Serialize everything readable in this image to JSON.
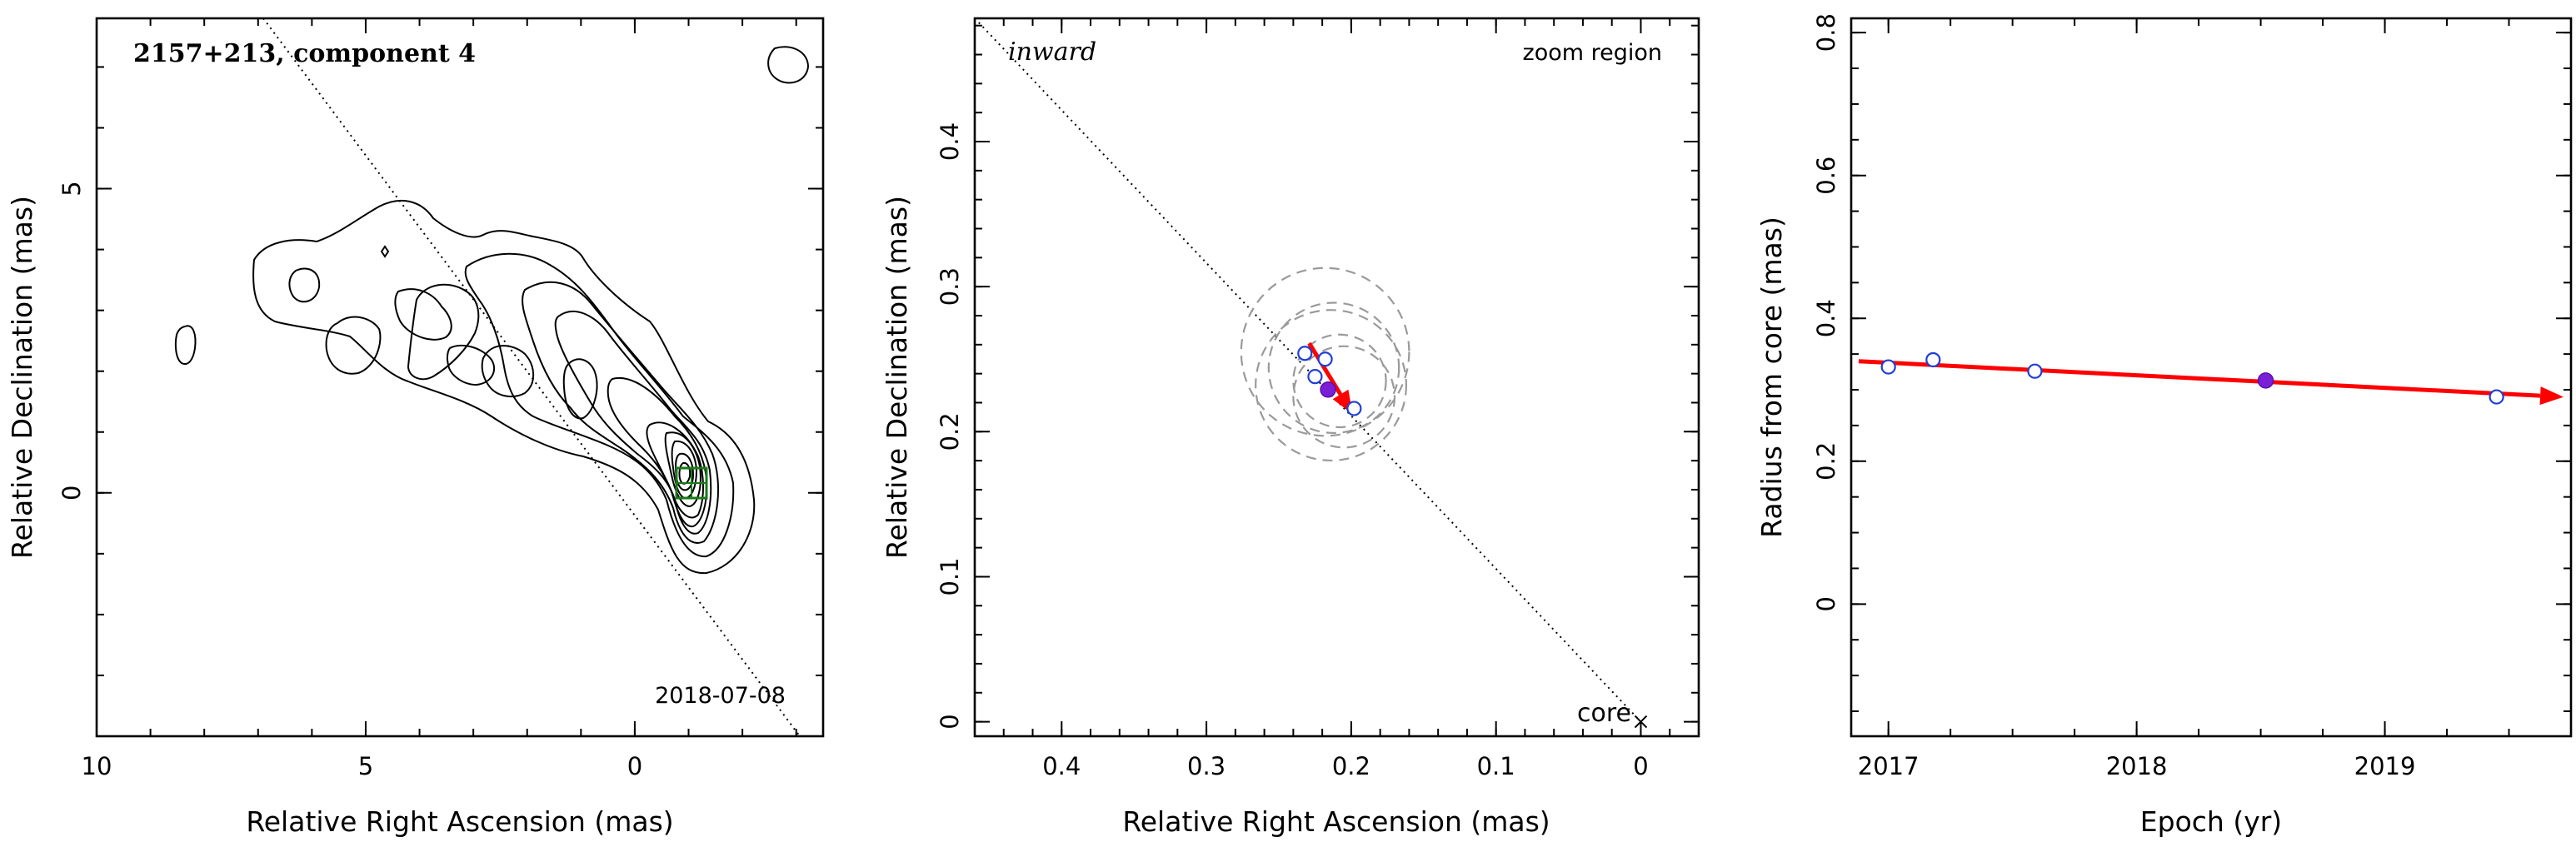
{
  "colors": {
    "open_marker": "#1f3fd6",
    "filled_marker": "#7a1fd6",
    "arrow": "#ff0000",
    "box": "#1a7a1a",
    "beam_circles": "#9a9a9a"
  },
  "chart_data": [
    {
      "type": "contour",
      "title": "2157+213, component 4",
      "date": "2018-07-08",
      "xlabel": "Relative Right Ascension (mas)",
      "ylabel": "Relative Declination (mas)",
      "xlim": [
        10,
        -3.5
      ],
      "ylim": [
        -4,
        7.8
      ],
      "xticks": [
        10,
        5,
        0
      ],
      "yticks": [
        0,
        5
      ],
      "jet_axis_line": [
        [
          7.3,
          7.8
        ],
        [
          -0.5,
          -0.6
        ]
      ],
      "zoom_box": {
        "x": [
          0.5,
          -0.1
        ],
        "y": [
          0.5,
          -0.05
        ]
      },
      "component_marker": {
        "x": 0.22,
        "y": 0.22
      },
      "grid": false
    },
    {
      "type": "scatter",
      "xlabel": "Relative Right Ascension (mas)",
      "ylabel": "Relative Declination (mas)",
      "xlim": [
        0.46,
        -0.04
      ],
      "ylim": [
        -0.01,
        0.485
      ],
      "xticks": [
        0.4,
        0.3,
        0.2,
        0.1,
        0
      ],
      "yticks": [
        0,
        0.1,
        0.2,
        0.3,
        0.4
      ],
      "labels": {
        "inward": "inward",
        "zoom": "zoom region",
        "core": "core"
      },
      "jet_axis_line": [
        [
          0.46,
          0.485
        ],
        [
          0.0,
          0.0
        ]
      ],
      "core_position": {
        "x": 0,
        "y": 0
      },
      "points_open": [
        {
          "x": 0.232,
          "y": 0.254
        },
        {
          "x": 0.225,
          "y": 0.238
        },
        {
          "x": 0.218,
          "y": 0.25
        },
        {
          "x": 0.198,
          "y": 0.216
        }
      ],
      "points_filled": [
        {
          "x": 0.216,
          "y": 0.229
        }
      ],
      "beam_circles": [
        {
          "x": 0.218,
          "y": 0.255,
          "r": 0.058
        },
        {
          "x": 0.212,
          "y": 0.244,
          "r": 0.045
        },
        {
          "x": 0.208,
          "y": 0.235,
          "r": 0.032
        },
        {
          "x": 0.205,
          "y": 0.224,
          "r": 0.035
        },
        {
          "x": 0.214,
          "y": 0.232,
          "r": 0.052
        }
      ],
      "velocity_arrow": {
        "from": {
          "x": 0.229,
          "y": 0.261
        },
        "to": {
          "x": 0.199,
          "y": 0.212
        }
      },
      "grid": false
    },
    {
      "type": "scatter",
      "xlabel": "Epoch (yr)",
      "ylabel": "Radius from core (mas)",
      "xlim": [
        2016.85,
        2019.75
      ],
      "ylim": [
        -0.185,
        0.82
      ],
      "xticks": [
        2017,
        2018,
        2019
      ],
      "yticks": [
        0,
        0.2,
        0.4,
        0.6,
        0.8
      ],
      "points_open": [
        {
          "x": 2017.0,
          "y": 0.332
        },
        {
          "x": 2017.18,
          "y": 0.342
        },
        {
          "x": 2017.59,
          "y": 0.326
        },
        {
          "x": 2019.45,
          "y": 0.29
        }
      ],
      "points_filled": [
        {
          "x": 2018.52,
          "y": 0.313
        }
      ],
      "fit_arrow": {
        "from": {
          "x": 2016.88,
          "y": 0.34
        },
        "to": {
          "x": 2019.72,
          "y": 0.29
        }
      },
      "grid": false
    }
  ]
}
